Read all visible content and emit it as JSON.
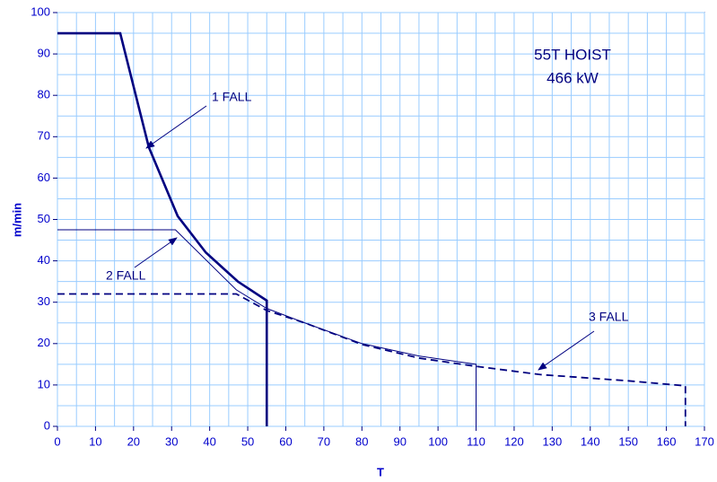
{
  "chart_data": {
    "type": "line",
    "notes": [
      "55T HOIST",
      "466 kW"
    ],
    "x_label": "T",
    "y_label": "m/min",
    "xlim": [
      0,
      170
    ],
    "ylim": [
      0,
      100
    ],
    "xticks": [
      0,
      10,
      20,
      30,
      40,
      50,
      60,
      70,
      80,
      90,
      100,
      110,
      120,
      130,
      140,
      150,
      160,
      170
    ],
    "yticks": [
      0,
      10,
      20,
      30,
      40,
      50,
      60,
      70,
      80,
      90,
      100
    ],
    "xgrid": [
      5,
      15,
      25,
      35,
      45,
      55,
      65,
      75,
      85,
      95,
      105,
      115,
      125,
      135,
      145,
      155,
      165
    ],
    "ygrid": [
      5,
      15,
      25,
      35,
      45,
      55,
      65,
      75,
      85,
      95
    ],
    "grid": true,
    "series": [
      {
        "name": "1 FALL",
        "color": "#000080",
        "style": "thick",
        "x": [
          0,
          16.5,
          24,
          31.6,
          39,
          47.4,
          55,
          55
        ],
        "values": [
          95,
          95,
          67.5,
          50.8,
          42,
          35,
          30.4,
          0
        ]
      },
      {
        "name": "2 FALL",
        "color": "#000080",
        "style": "thin",
        "x": [
          0,
          31,
          47,
          55,
          65,
          80,
          95,
          110,
          110
        ],
        "values": [
          47.5,
          47.5,
          33,
          28.5,
          25,
          20,
          17,
          15,
          0
        ]
      },
      {
        "name": "3 FALL",
        "color": "#000080",
        "style": "dashed",
        "x": [
          0,
          47,
          55,
          65,
          80,
          95,
          110,
          127,
          150,
          165,
          165
        ],
        "values": [
          32,
          32,
          28,
          25,
          19.8,
          16.5,
          14.5,
          12.5,
          11,
          9.8,
          0
        ]
      }
    ]
  }
}
